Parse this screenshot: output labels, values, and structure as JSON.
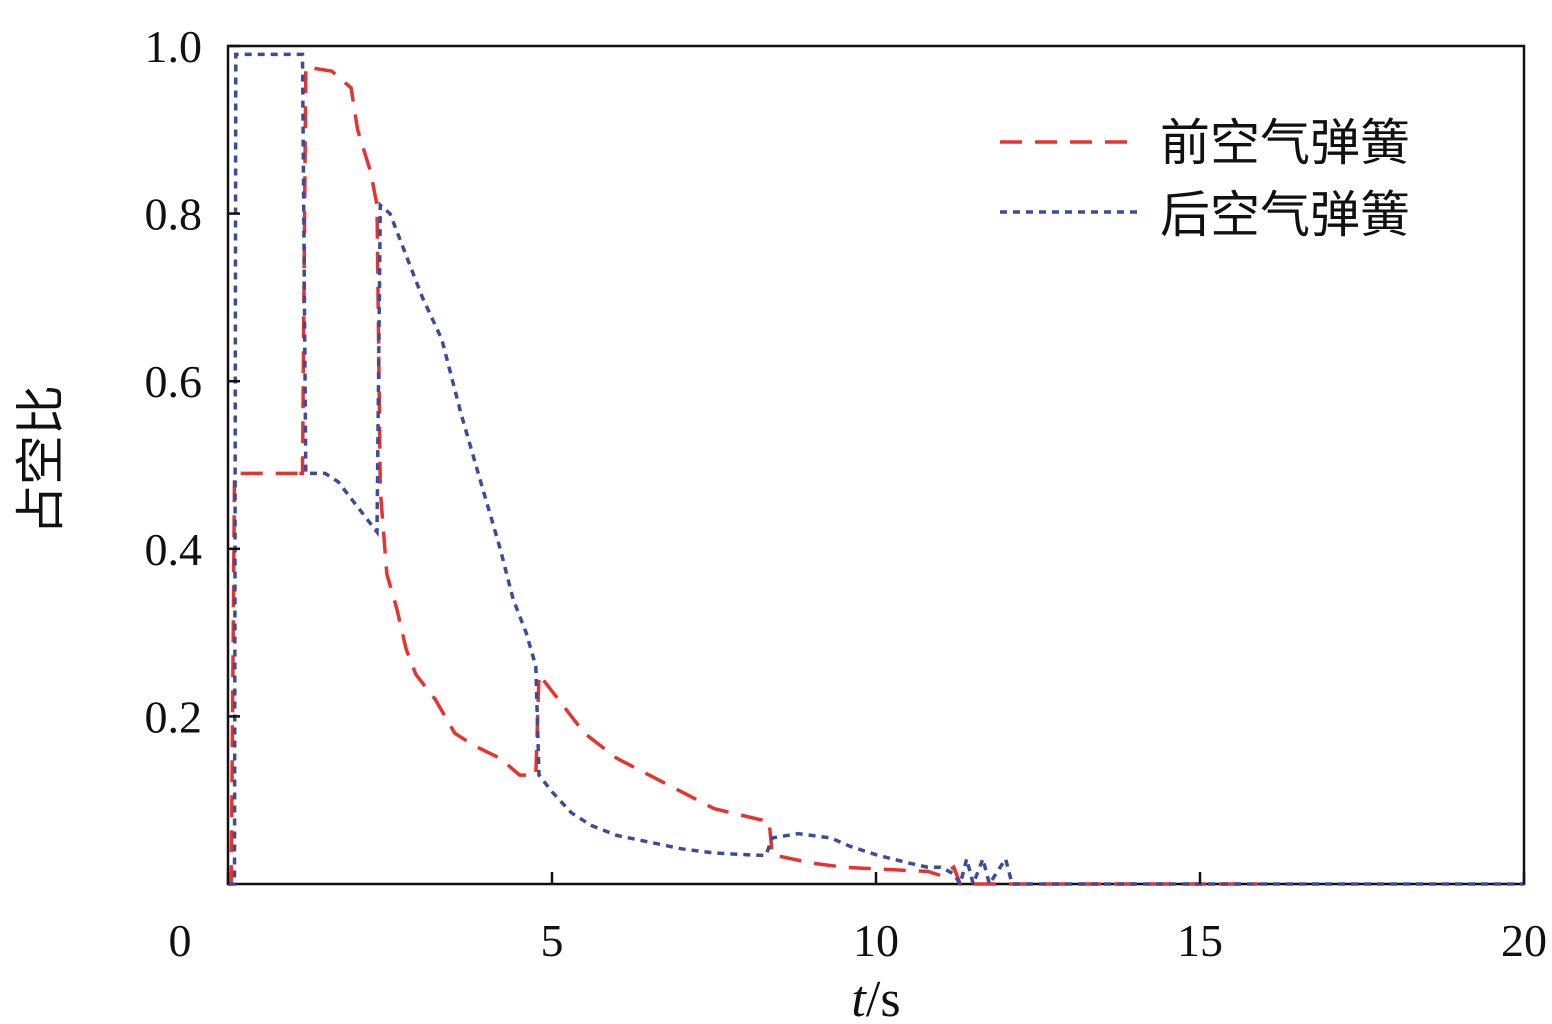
{
  "chart_data": {
    "type": "line",
    "xlabel_var": "t",
    "xlabel_unit": "/s",
    "ylabel": "占空比",
    "xlim": [
      0,
      20
    ],
    "ylim": [
      0,
      1.0
    ],
    "xticks": [
      "0",
      "5",
      "10",
      "15",
      "20"
    ],
    "xtick_values": [
      0,
      5,
      10,
      15,
      20
    ],
    "yticks": [
      "0.2",
      "0.4",
      "0.6",
      "0.8",
      "1.0"
    ],
    "ytick_values": [
      0.2,
      0.4,
      0.6,
      0.8,
      1.0
    ],
    "grid": false,
    "legend_position": "top-right",
    "series": [
      {
        "name": "前空气弹簧",
        "color": "#e8322d",
        "dash": "long-dash",
        "points": [
          [
            0.0,
            0.0
          ],
          [
            0.05,
            0.0
          ],
          [
            0.1,
            0.49
          ],
          [
            1.2,
            0.49
          ],
          [
            1.1,
            0.49
          ],
          [
            1.15,
            0.49
          ],
          [
            1.2,
            0.975
          ],
          [
            1.6,
            0.97
          ],
          [
            1.9,
            0.95
          ],
          [
            2.0,
            0.9
          ],
          [
            2.2,
            0.85
          ],
          [
            2.25,
            0.83
          ],
          [
            2.3,
            0.81
          ],
          [
            2.35,
            0.47
          ],
          [
            2.45,
            0.37
          ],
          [
            2.6,
            0.33
          ],
          [
            2.75,
            0.28
          ],
          [
            2.9,
            0.25
          ],
          [
            3.2,
            0.22
          ],
          [
            3.5,
            0.18
          ],
          [
            3.8,
            0.165
          ],
          [
            4.2,
            0.15
          ],
          [
            4.5,
            0.13
          ],
          [
            4.75,
            0.13
          ],
          [
            4.8,
            0.25
          ],
          [
            5.1,
            0.22
          ],
          [
            5.5,
            0.18
          ],
          [
            6.0,
            0.15
          ],
          [
            6.5,
            0.13
          ],
          [
            7.0,
            0.11
          ],
          [
            7.5,
            0.09
          ],
          [
            8.2,
            0.077
          ],
          [
            8.35,
            0.075
          ],
          [
            8.4,
            0.035
          ],
          [
            9.0,
            0.025
          ],
          [
            9.5,
            0.02
          ],
          [
            10.0,
            0.018
          ],
          [
            10.8,
            0.015
          ],
          [
            11.0,
            0.01
          ],
          [
            11.2,
            0.02
          ],
          [
            11.3,
            0.0
          ],
          [
            12.0,
            0.0
          ],
          [
            15.9,
            0.0
          ]
        ]
      },
      {
        "name": "后空气弹簧",
        "color": "#3b4d9a",
        "dash": "short-dash",
        "points": [
          [
            0.0,
            0.0
          ],
          [
            0.05,
            0.0
          ],
          [
            0.1,
            0.0
          ],
          [
            0.12,
            0.99
          ],
          [
            1.15,
            0.99
          ],
          [
            1.2,
            0.49
          ],
          [
            1.5,
            0.49
          ],
          [
            1.7,
            0.48
          ],
          [
            2.0,
            0.45
          ],
          [
            2.3,
            0.42
          ],
          [
            2.35,
            0.81
          ],
          [
            2.5,
            0.8
          ],
          [
            2.8,
            0.74
          ],
          [
            3.0,
            0.7
          ],
          [
            3.3,
            0.65
          ],
          [
            3.6,
            0.56
          ],
          [
            3.9,
            0.48
          ],
          [
            4.2,
            0.4
          ],
          [
            4.4,
            0.34
          ],
          [
            4.6,
            0.3
          ],
          [
            4.75,
            0.26
          ],
          [
            4.8,
            0.13
          ],
          [
            5.0,
            0.11
          ],
          [
            5.3,
            0.085
          ],
          [
            5.6,
            0.07
          ],
          [
            6.0,
            0.058
          ],
          [
            6.5,
            0.05
          ],
          [
            7.0,
            0.042
          ],
          [
            7.5,
            0.037
          ],
          [
            8.0,
            0.035
          ],
          [
            8.3,
            0.034
          ],
          [
            8.4,
            0.055
          ],
          [
            8.8,
            0.06
          ],
          [
            9.3,
            0.055
          ],
          [
            9.6,
            0.045
          ],
          [
            10.0,
            0.035
          ],
          [
            10.5,
            0.025
          ],
          [
            10.8,
            0.02
          ],
          [
            11.0,
            0.02
          ],
          [
            11.2,
            0.012
          ],
          [
            11.3,
            0.0
          ],
          [
            11.4,
            0.03
          ],
          [
            11.5,
            0.0
          ],
          [
            11.65,
            0.03
          ],
          [
            11.75,
            0.0
          ],
          [
            12.0,
            0.03
          ],
          [
            12.1,
            0.0
          ],
          [
            20.0,
            0.0
          ]
        ]
      }
    ]
  }
}
